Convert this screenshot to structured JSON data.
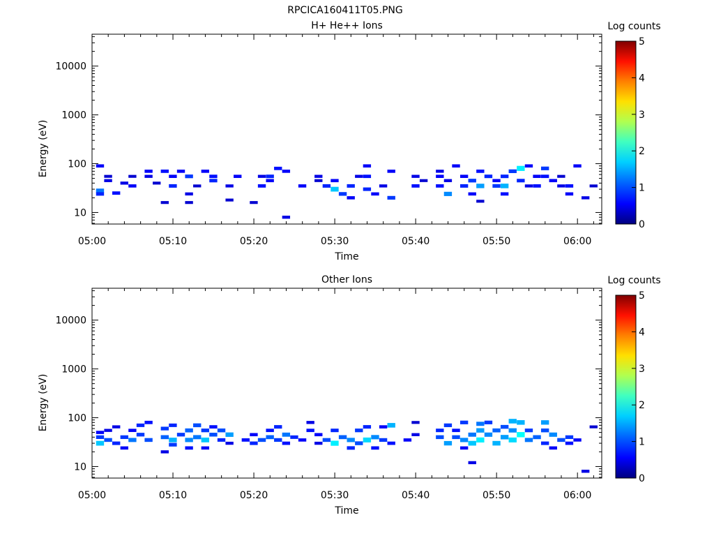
{
  "figure_title": "RPCICA160411T05.PNG",
  "colors": {
    "colormap": [
      "#000080",
      "#0000ff",
      "#0080ff",
      "#00ffff",
      "#80ff80",
      "#ffff00",
      "#ff8000",
      "#ff0000",
      "#800000"
    ]
  },
  "chart_data": [
    {
      "type": "heatmap",
      "title": "H+ He++ Ions",
      "xlabel": "Time",
      "ylabel": "Energy (eV)",
      "x_ticks": [
        "05:00",
        "05:10",
        "05:20",
        "05:30",
        "05:40",
        "05:50",
        "06:00"
      ],
      "x_tick_minutes": [
        0,
        10,
        20,
        30,
        40,
        50,
        60
      ],
      "xlim_minutes": [
        0,
        63
      ],
      "y_scale": "log",
      "ylim": [
        5.8,
        45000
      ],
      "y_ticks": [
        "10",
        "100",
        "1000",
        "10000"
      ],
      "y_tick_values": [
        10,
        100,
        1000,
        10000
      ],
      "colorbar": {
        "label": "Log counts",
        "ticks": [
          "0",
          "1",
          "2",
          "3",
          "4",
          "5"
        ],
        "range": [
          0,
          5
        ]
      },
      "cells": [
        [
          1,
          28,
          1.2
        ],
        [
          1,
          24,
          0.8
        ],
        [
          1,
          90,
          0.6
        ],
        [
          2,
          55,
          0.4
        ],
        [
          2,
          45,
          0.5
        ],
        [
          3,
          25,
          0.7
        ],
        [
          4,
          40,
          0.5
        ],
        [
          5,
          55,
          0.4
        ],
        [
          5,
          35,
          0.6
        ],
        [
          7,
          70,
          0.6
        ],
        [
          7,
          55,
          0.5
        ],
        [
          8,
          40,
          0.4
        ],
        [
          9,
          16,
          0.4
        ],
        [
          9,
          70,
          0.7
        ],
        [
          10,
          55,
          0.6
        ],
        [
          10,
          35,
          0.8
        ],
        [
          11,
          70,
          0.6
        ],
        [
          12,
          24,
          0.5
        ],
        [
          12,
          16,
          0.4
        ],
        [
          12,
          55,
          0.9
        ],
        [
          13,
          35,
          0.4
        ],
        [
          14,
          70,
          0.6
        ],
        [
          15,
          55,
          0.7
        ],
        [
          15,
          45,
          0.8
        ],
        [
          17,
          18,
          0.4
        ],
        [
          17,
          35,
          0.5
        ],
        [
          18,
          55,
          0.6
        ],
        [
          20,
          16,
          0.4
        ],
        [
          21,
          55,
          0.5
        ],
        [
          21,
          35,
          0.7
        ],
        [
          22,
          45,
          0.6
        ],
        [
          22,
          55,
          0.8
        ],
        [
          23,
          80,
          0.7
        ],
        [
          24,
          70,
          0.6
        ],
        [
          24,
          8,
          0.5
        ],
        [
          26,
          35,
          0.6
        ],
        [
          28,
          55,
          0.5
        ],
        [
          28,
          45,
          0.4
        ],
        [
          29,
          35,
          0.8
        ],
        [
          30,
          45,
          0.6
        ],
        [
          30,
          30,
          1.6
        ],
        [
          31,
          24,
          0.9
        ],
        [
          32,
          35,
          0.8
        ],
        [
          32,
          20,
          0.6
        ],
        [
          33,
          55,
          0.5
        ],
        [
          34,
          55,
          0.7
        ],
        [
          34,
          90,
          0.6
        ],
        [
          34,
          30,
          0.8
        ],
        [
          35,
          24,
          0.6
        ],
        [
          36,
          35,
          0.5
        ],
        [
          37,
          20,
          0.9
        ],
        [
          37,
          70,
          0.6
        ],
        [
          40,
          35,
          0.7
        ],
        [
          40,
          55,
          0.5
        ],
        [
          41,
          45,
          0.4
        ],
        [
          43,
          35,
          0.7
        ],
        [
          43,
          55,
          0.6
        ],
        [
          43,
          70,
          0.5
        ],
        [
          44,
          24,
          1.3
        ],
        [
          44,
          45,
          0.5
        ],
        [
          45,
          90,
          0.6
        ],
        [
          46,
          35,
          0.8
        ],
        [
          46,
          55,
          0.6
        ],
        [
          47,
          24,
          0.6
        ],
        [
          47,
          45,
          0.9
        ],
        [
          48,
          35,
          1.4
        ],
        [
          48,
          70,
          0.7
        ],
        [
          48,
          17,
          0.4
        ],
        [
          49,
          55,
          0.8
        ],
        [
          50,
          35,
          0.9
        ],
        [
          50,
          45,
          0.6
        ],
        [
          51,
          24,
          0.7
        ],
        [
          51,
          35,
          1.5
        ],
        [
          51,
          55,
          0.8
        ],
        [
          52,
          70,
          0.9
        ],
        [
          53,
          45,
          0.8
        ],
        [
          53,
          80,
          1.8
        ],
        [
          54,
          35,
          0.5
        ],
        [
          54,
          90,
          0.6
        ],
        [
          55,
          55,
          0.6
        ],
        [
          55,
          35,
          0.7
        ],
        [
          56,
          55,
          0.7
        ],
        [
          56,
          80,
          0.9
        ],
        [
          57,
          45,
          0.6
        ],
        [
          58,
          35,
          0.5
        ],
        [
          58,
          55,
          0.4
        ],
        [
          59,
          24,
          0.6
        ],
        [
          59,
          35,
          0.7
        ],
        [
          60,
          90,
          0.6
        ],
        [
          61,
          20,
          0.5
        ],
        [
          62,
          35,
          0.4
        ]
      ]
    },
    {
      "type": "heatmap",
      "title": "Other Ions",
      "xlabel": "Time",
      "ylabel": "Energy (eV)",
      "x_ticks": [
        "05:00",
        "05:10",
        "05:20",
        "05:30",
        "05:40",
        "05:50",
        "06:00"
      ],
      "x_tick_minutes": [
        0,
        10,
        20,
        30,
        40,
        50,
        60
      ],
      "xlim_minutes": [
        0,
        63
      ],
      "y_scale": "log",
      "ylim": [
        5.8,
        45000
      ],
      "y_ticks": [
        "10",
        "100",
        "1000",
        "10000"
      ],
      "y_tick_values": [
        10,
        100,
        1000,
        10000
      ],
      "colorbar": {
        "label": "Log counts",
        "ticks": [
          "0",
          "1",
          "2",
          "3",
          "4",
          "5"
        ],
        "range": [
          0,
          5
        ]
      },
      "cells": [
        [
          1,
          30,
          1.6
        ],
        [
          1,
          40,
          0.9
        ],
        [
          1,
          50,
          0.6
        ],
        [
          2,
          35,
          1.0
        ],
        [
          2,
          55,
          0.5
        ],
        [
          3,
          30,
          0.8
        ],
        [
          3,
          65,
          0.5
        ],
        [
          4,
          40,
          0.9
        ],
        [
          4,
          24,
          0.6
        ],
        [
          5,
          35,
          1.2
        ],
        [
          5,
          55,
          0.6
        ],
        [
          6,
          70,
          0.8
        ],
        [
          6,
          45,
          0.9
        ],
        [
          7,
          80,
          0.7
        ],
        [
          7,
          35,
          1.0
        ],
        [
          9,
          40,
          1.1
        ],
        [
          9,
          60,
          0.9
        ],
        [
          9,
          20,
          0.5
        ],
        [
          10,
          35,
          1.5
        ],
        [
          10,
          70,
          0.8
        ],
        [
          10,
          28,
          0.9
        ],
        [
          11,
          45,
          0.9
        ],
        [
          12,
          35,
          1.3
        ],
        [
          12,
          55,
          1.1
        ],
        [
          12,
          24,
          0.7
        ],
        [
          13,
          40,
          1.2
        ],
        [
          13,
          70,
          1.0
        ],
        [
          14,
          35,
          1.6
        ],
        [
          14,
          55,
          0.9
        ],
        [
          14,
          24,
          0.6
        ],
        [
          15,
          45,
          1.0
        ],
        [
          15,
          65,
          0.7
        ],
        [
          16,
          35,
          0.8
        ],
        [
          16,
          55,
          1.0
        ],
        [
          17,
          45,
          1.4
        ],
        [
          17,
          30,
          0.5
        ],
        [
          19,
          35,
          0.7
        ],
        [
          20,
          30,
          0.8
        ],
        [
          20,
          45,
          0.6
        ],
        [
          21,
          35,
          1.0
        ],
        [
          22,
          40,
          1.1
        ],
        [
          22,
          55,
          0.7
        ],
        [
          23,
          35,
          0.9
        ],
        [
          23,
          65,
          0.8
        ],
        [
          24,
          45,
          1.2
        ],
        [
          24,
          30,
          0.7
        ],
        [
          25,
          40,
          0.8
        ],
        [
          26,
          35,
          0.6
        ],
        [
          27,
          55,
          0.7
        ],
        [
          27,
          80,
          0.5
        ],
        [
          28,
          30,
          0.5
        ],
        [
          28,
          45,
          0.6
        ],
        [
          29,
          35,
          1.0
        ],
        [
          30,
          30,
          1.8
        ],
        [
          30,
          55,
          0.8
        ],
        [
          31,
          40,
          1.1
        ],
        [
          32,
          35,
          1.3
        ],
        [
          32,
          24,
          0.8
        ],
        [
          33,
          30,
          1.0
        ],
        [
          33,
          55,
          0.9
        ],
        [
          34,
          35,
          1.7
        ],
        [
          34,
          65,
          0.8
        ],
        [
          35,
          40,
          1.3
        ],
        [
          35,
          24,
          0.7
        ],
        [
          36,
          35,
          0.9
        ],
        [
          36,
          65,
          0.6
        ],
        [
          37,
          30,
          0.7
        ],
        [
          37,
          70,
          1.5
        ],
        [
          39,
          35,
          0.6
        ],
        [
          40,
          45,
          0.5
        ],
        [
          40,
          80,
          0.4
        ],
        [
          43,
          40,
          1.0
        ],
        [
          43,
          55,
          0.8
        ],
        [
          44,
          30,
          1.4
        ],
        [
          44,
          70,
          0.9
        ],
        [
          45,
          40,
          1.0
        ],
        [
          45,
          55,
          0.7
        ],
        [
          46,
          35,
          1.3
        ],
        [
          46,
          80,
          0.9
        ],
        [
          46,
          24,
          0.6
        ],
        [
          47,
          30,
          1.6
        ],
        [
          47,
          45,
          1.2
        ],
        [
          47,
          12,
          0.5
        ],
        [
          48,
          35,
          1.8
        ],
        [
          48,
          55,
          1.4
        ],
        [
          48,
          75,
          1.2
        ],
        [
          49,
          45,
          1.3
        ],
        [
          49,
          80,
          0.9
        ],
        [
          50,
          30,
          1.5
        ],
        [
          50,
          55,
          1.1
        ],
        [
          51,
          40,
          1.4
        ],
        [
          51,
          65,
          1.0
        ],
        [
          52,
          35,
          1.7
        ],
        [
          52,
          55,
          1.3
        ],
        [
          52,
          85,
          1.5
        ],
        [
          53,
          45,
          1.9
        ],
        [
          53,
          80,
          1.5
        ],
        [
          54,
          35,
          1.2
        ],
        [
          54,
          55,
          0.9
        ],
        [
          55,
          40,
          1.1
        ],
        [
          56,
          30,
          0.8
        ],
        [
          56,
          55,
          1.0
        ],
        [
          56,
          80,
          1.4
        ],
        [
          57,
          45,
          1.3
        ],
        [
          57,
          24,
          0.6
        ],
        [
          58,
          35,
          1.0
        ],
        [
          59,
          30,
          0.7
        ],
        [
          59,
          40,
          0.9
        ],
        [
          60,
          35,
          0.6
        ],
        [
          61,
          8,
          0.5
        ],
        [
          62,
          65,
          0.4
        ]
      ]
    }
  ]
}
